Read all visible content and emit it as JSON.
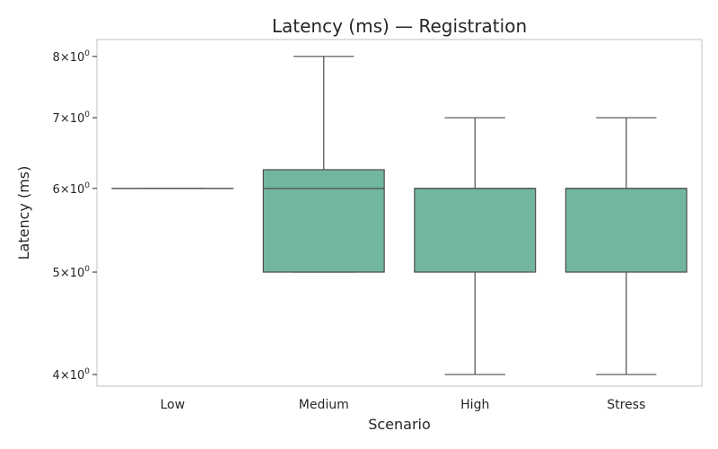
{
  "chart_data": {
    "type": "box",
    "title": "Latency (ms) — Registration",
    "xlabel": "Scenario",
    "ylabel": "Latency (ms)",
    "yscale": "log",
    "ylim": [
      3.9,
      8.3
    ],
    "grid": false,
    "box_color": "#72b6a1",
    "line_color": "#4d4d4d",
    "y_ticks": [
      {
        "value": 4,
        "base": "4",
        "exp": "0"
      },
      {
        "value": 5,
        "base": "5",
        "exp": "0"
      },
      {
        "value": 6,
        "base": "6",
        "exp": "0"
      },
      {
        "value": 7,
        "base": "7",
        "exp": "0"
      },
      {
        "value": 8,
        "base": "8",
        "exp": "0"
      }
    ],
    "categories": [
      "Low",
      "Medium",
      "High",
      "Stress"
    ],
    "boxes": [
      {
        "min": 6,
        "q1": 6,
        "median": 6,
        "q3": 6,
        "max": 6
      },
      {
        "min": 5,
        "q1": 5,
        "median": 6,
        "q3": 6.25,
        "max": 8
      },
      {
        "min": 4,
        "q1": 5,
        "median": 6,
        "q3": 6,
        "max": 7
      },
      {
        "min": 4,
        "q1": 5,
        "median": 6,
        "q3": 6,
        "max": 7
      }
    ]
  }
}
